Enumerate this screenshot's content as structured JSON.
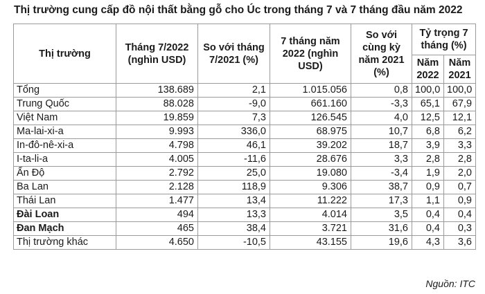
{
  "title": "Thị trường cung cấp đồ nội thất bằng gỗ cho Úc trong tháng 7 và 7 tháng đầu năm 2022",
  "headers": {
    "market": "Thị trường",
    "jul_2022": "Tháng 7/2022 (nghìn USD)",
    "vs_jul_2021": "So với tháng 7/2021 (%)",
    "ytd_2022": "7 tháng năm 2022 (nghìn USD)",
    "vs_ytd_2021": "So với cùng kỳ năm 2021 (%)",
    "share": "Tỷ trọng 7 tháng (%)",
    "share_2022": "Năm 2022",
    "share_2021": "Năm 2021"
  },
  "rows": [
    {
      "name": "Tổng",
      "jul": "138.689",
      "chg": "2,1",
      "ytd": "1.015.056",
      "ytd_chg": "0,8",
      "s22": "100,0",
      "s21": "100,0",
      "bold": false
    },
    {
      "name": "Trung Quốc",
      "jul": "88.028",
      "chg": "-9,0",
      "ytd": "661.160",
      "ytd_chg": "-3,3",
      "s22": "65,1",
      "s21": "67,9",
      "bold": false
    },
    {
      "name": "Việt Nam",
      "jul": "19.859",
      "chg": "7,3",
      "ytd": "126.545",
      "ytd_chg": "4,0",
      "s22": "12,5",
      "s21": "12,1",
      "bold": false
    },
    {
      "name": "Ma-lai-xi-a",
      "jul": "9.993",
      "chg": "336,0",
      "ytd": "68.975",
      "ytd_chg": "10,7",
      "s22": "6,8",
      "s21": "6,2",
      "bold": false
    },
    {
      "name": "In-đô-nê-xi-a",
      "jul": "4.798",
      "chg": "46,1",
      "ytd": "39.202",
      "ytd_chg": "18,7",
      "s22": "3,9",
      "s21": "3,3",
      "bold": false
    },
    {
      "name": "I-ta-li-a",
      "jul": "4.005",
      "chg": "-11,6",
      "ytd": "28.676",
      "ytd_chg": "3,3",
      "s22": "2,8",
      "s21": "2,8",
      "bold": false
    },
    {
      "name": "Ấn Độ",
      "jul": "2.792",
      "chg": "25,0",
      "ytd": "19.080",
      "ytd_chg": "-3,4",
      "s22": "1,9",
      "s21": "2,0",
      "bold": false
    },
    {
      "name": "Ba Lan",
      "jul": "2.128",
      "chg": "118,9",
      "ytd": "9.306",
      "ytd_chg": "38,7",
      "s22": "0,9",
      "s21": "0,7",
      "bold": false
    },
    {
      "name": "Thái Lan",
      "jul": "1.477",
      "chg": "13,4",
      "ytd": "11.222",
      "ytd_chg": "17,3",
      "s22": "1,1",
      "s21": "0,9",
      "bold": false
    },
    {
      "name": "Đài Loan",
      "jul": "494",
      "chg": "13,3",
      "ytd": "4.014",
      "ytd_chg": "3,5",
      "s22": "0,4",
      "s21": "0,4",
      "bold": true
    },
    {
      "name": "Đan Mạch",
      "jul": "465",
      "chg": "38,4",
      "ytd": "3.721",
      "ytd_chg": "31,6",
      "s22": "0,4",
      "s21": "0,3",
      "bold": true
    },
    {
      "name": "Thị trường khác",
      "jul": "4.650",
      "chg": "-10,5",
      "ytd": "43.155",
      "ytd_chg": "19,6",
      "s22": "4,3",
      "s21": "3,6",
      "bold": false
    }
  ],
  "source": "Nguồn: ITC"
}
